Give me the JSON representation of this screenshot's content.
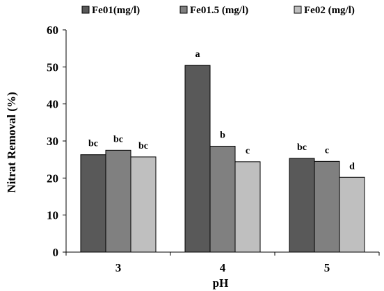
{
  "chart_data": {
    "type": "bar",
    "title": "",
    "xlabel": "pH",
    "ylabel": "Nitrat Removal (%)",
    "ylim": [
      0,
      60
    ],
    "yticks": [
      0,
      10,
      20,
      30,
      40,
      50,
      60
    ],
    "grid": false,
    "legend_position": "top",
    "categories": [
      "3",
      "4",
      "5"
    ],
    "series": [
      {
        "name": "Fe01(mg/l)",
        "color": "#595959",
        "values": [
          26.3,
          50.4,
          25.3
        ],
        "labels": [
          "bc",
          "a",
          "bc"
        ]
      },
      {
        "name": "Fe01.5 (mg/l)",
        "color": "#808080",
        "values": [
          27.5,
          28.6,
          24.5
        ],
        "labels": [
          "bc",
          "b",
          "c"
        ]
      },
      {
        "name": "Fe02 (mg/l)",
        "color": "#bfbfbf",
        "values": [
          25.7,
          24.4,
          20.2
        ],
        "labels": [
          "bc",
          "c",
          "d"
        ]
      }
    ]
  }
}
